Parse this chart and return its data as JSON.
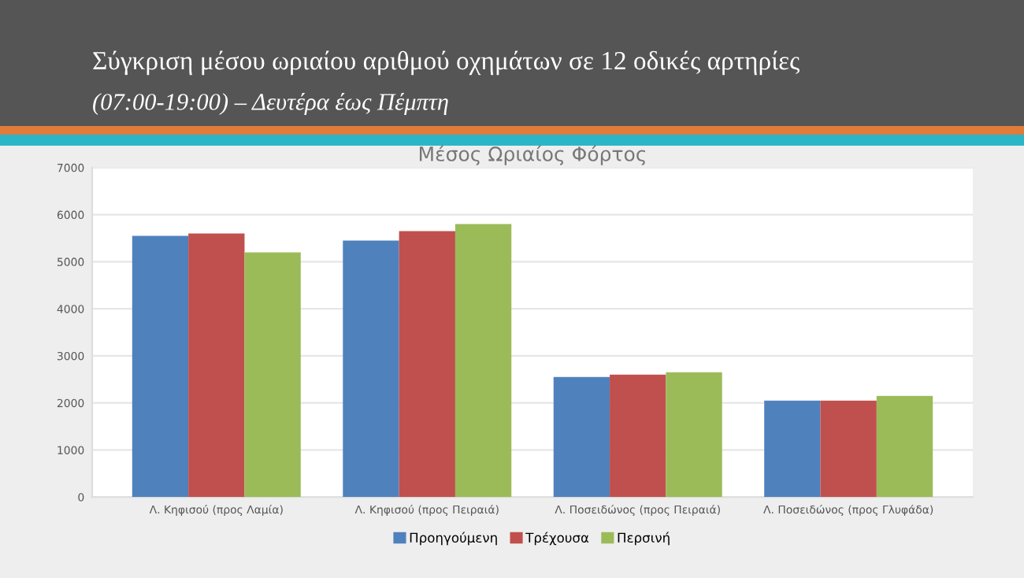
{
  "chart_data": {
    "type": "bar",
    "title": "Σύγκριση μέσου ωριαίου αριθμού οχημάτων σε 12 οδικές αρτηρίες",
    "subtitle": "(07:00-19:00) – Δευτέρα έως Πέμπτη",
    "annotations": [
      "Μέσος Ωριαίος Φόρτος"
    ],
    "categories": [
      "Λ. Κηφισού (προς Λαμία)",
      "Λ. Κηφισού (προς Πειραιά)",
      "Λ. Ποσειδώνος (προς Πειραιά)",
      "Λ. Ποσειδώνος (προς Γλυφάδα)"
    ],
    "series": [
      {
        "name": "Προηγούμενη",
        "color": "#4f81bd",
        "values": [
          5550,
          5450,
          2550,
          2050
        ]
      },
      {
        "name": "Τρέχουσα",
        "color": "#c0504d",
        "values": [
          5600,
          5650,
          2600,
          2050
        ]
      },
      {
        "name": "Περσινή",
        "color": "#9bbb59",
        "values": [
          5200,
          5800,
          2650,
          2150
        ]
      }
    ],
    "ylim": [
      0,
      7000
    ],
    "yticks": [
      0,
      1000,
      2000,
      3000,
      4000,
      5000,
      6000,
      7000
    ],
    "grid": "y",
    "legend": "bottom"
  }
}
